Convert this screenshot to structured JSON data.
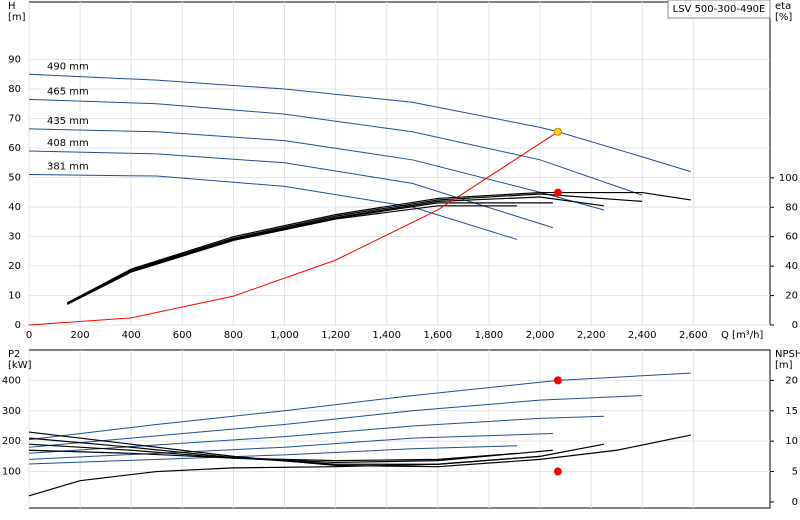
{
  "chart_data": [
    {
      "type": "line",
      "title": "LSV 500-300-490E",
      "ylabel": "H",
      "ylabel_unit": "[m]",
      "y2label": "eta",
      "y2label_unit": "[%]",
      "xlabel": "Q [m³/h]",
      "xlim": [
        0,
        2900
      ],
      "ylim": [
        0,
        109.5
      ],
      "y2lim": [
        0,
        219.5
      ],
      "grid": true,
      "xticks": [
        0,
        200,
        400,
        600,
        800,
        {
          "value": 1000,
          "label": "1,000"
        },
        {
          "value": 1200,
          "label": "1,200"
        },
        {
          "value": 1400,
          "label": "1,400"
        },
        {
          "value": 1600,
          "label": "1,600"
        },
        {
          "value": 1800,
          "label": "1,800"
        },
        {
          "value": 2000,
          "label": "2,000"
        },
        {
          "value": 2200,
          "label": "2,200"
        },
        {
          "value": 2400,
          "label": "2,400"
        },
        {
          "value": 2600,
          "label": "2,600"
        }
      ],
      "yticks": [
        0,
        10,
        20,
        30,
        40,
        50,
        60,
        70,
        80,
        90
      ],
      "y2ticks": [
        0,
        20,
        40,
        60,
        80,
        100
      ],
      "series": [
        {
          "name": "490 mm",
          "color": "#1f4e8c",
          "x": [
            0,
            500,
            1000,
            1500,
            2000,
            2070,
            2400,
            2590
          ],
          "values": [
            85,
            83,
            80,
            75.5,
            67,
            65.5,
            57,
            52
          ]
        },
        {
          "name": "465 mm",
          "color": "#1f4e8c",
          "x": [
            0,
            500,
            1000,
            1500,
            2000,
            2400
          ],
          "values": [
            76.5,
            75,
            71.5,
            65.5,
            56,
            44
          ]
        },
        {
          "name": "435 mm",
          "color": "#1f4e8c",
          "x": [
            0,
            500,
            1000,
            1500,
            2000,
            2250
          ],
          "values": [
            66.5,
            65.5,
            62.5,
            56,
            45,
            39
          ]
        },
        {
          "name": "408 mm",
          "color": "#1f4e8c",
          "x": [
            0,
            500,
            1000,
            1500,
            2050
          ],
          "values": [
            59,
            58,
            55,
            48,
            33
          ]
        },
        {
          "name": "381 mm",
          "color": "#1f4e8c",
          "x": [
            0,
            500,
            1000,
            1500,
            1910
          ],
          "values": [
            51,
            50.5,
            47,
            40,
            29
          ]
        },
        {
          "axis": "y2",
          "color": "#000000",
          "x": [
            150,
            400,
            800,
            1200,
            1600,
            2000,
            2400,
            2590
          ],
          "values": [
            15,
            38,
            60,
            75,
            86,
            90,
            90,
            85
          ]
        },
        {
          "axis": "y2",
          "color": "#000000",
          "x": [
            150,
            400,
            800,
            1200,
            1600,
            2000,
            2400
          ],
          "values": [
            15,
            37.5,
            59,
            74,
            85,
            89,
            84
          ]
        },
        {
          "axis": "y2",
          "color": "#000000",
          "x": [
            150,
            400,
            800,
            1200,
            1600,
            2000,
            2250
          ],
          "values": [
            14.5,
            37,
            58.5,
            73,
            84,
            87,
            81
          ]
        },
        {
          "axis": "y2",
          "color": "#000000",
          "x": [
            150,
            400,
            800,
            1200,
            1600,
            2050
          ],
          "values": [
            14.5,
            36.5,
            58,
            72.5,
            83,
            83
          ]
        },
        {
          "axis": "y2",
          "color": "#000000",
          "x": [
            150,
            400,
            800,
            1200,
            1600,
            1910
          ],
          "values": [
            14,
            36,
            57.5,
            72,
            81,
            81
          ]
        },
        {
          "color": "#ff0000",
          "x": [
            0,
            400,
            800,
            1200,
            1600,
            2070
          ],
          "values": [
            0,
            2.4,
            9.8,
            22,
            39,
            65.5
          ]
        }
      ],
      "points": [
        {
          "x": 2070,
          "y": 65.5,
          "color": "#ffd700"
        },
        {
          "x": 2070,
          "y": 90,
          "axis": "y2",
          "color": "#ff0000"
        }
      ]
    },
    {
      "type": "line",
      "ylabel": "P2",
      "ylabel_unit": "[kW]",
      "y2label": "NPSH",
      "y2label_unit": "[m]",
      "xlim": [
        0,
        2900
      ],
      "ylim": [
        -20,
        500
      ],
      "y2lim": [
        -1,
        25
      ],
      "grid": true,
      "yticks": [
        100,
        200,
        300,
        400
      ],
      "y2ticks": [
        0,
        5,
        10,
        15,
        20
      ],
      "series": [
        {
          "color": "#1f4e8c",
          "x": [
            0,
            500,
            1000,
            1500,
            2070,
            2590
          ],
          "values": [
            205,
            255,
            300,
            350,
            400,
            424
          ]
        },
        {
          "color": "#1f4e8c",
          "x": [
            0,
            1000,
            1500,
            2000,
            2400
          ],
          "values": [
            180,
            255,
            300,
            335,
            350
          ]
        },
        {
          "color": "#1f4e8c",
          "x": [
            0,
            1000,
            1500,
            2000,
            2250
          ],
          "values": [
            160,
            215,
            250,
            275,
            282
          ]
        },
        {
          "color": "#1f4e8c",
          "x": [
            0,
            1000,
            1500,
            2050
          ],
          "values": [
            140,
            180,
            210,
            225
          ]
        },
        {
          "color": "#1f4e8c",
          "x": [
            0,
            1000,
            1500,
            1910
          ],
          "values": [
            125,
            155,
            175,
            185
          ]
        },
        {
          "axis": "y2",
          "color": "#000000",
          "x": [
            0,
            400,
            800,
            1200,
            1600,
            2000,
            2300,
            2590
          ],
          "values": [
            11.5,
            9.5,
            7.5,
            6,
            5.8,
            7,
            8.5,
            11
          ]
        },
        {
          "axis": "y2",
          "color": "#000000",
          "x": [
            0,
            400,
            800,
            1200,
            1600,
            2000,
            2250
          ],
          "values": [
            10.5,
            9,
            7.3,
            6.2,
            6.2,
            7.5,
            9.5
          ]
        },
        {
          "axis": "y2",
          "color": "#000000",
          "x": [
            0,
            400,
            800,
            1200,
            1600,
            2050
          ],
          "values": [
            9.5,
            8.5,
            7.2,
            6.5,
            6.8,
            8.5
          ]
        },
        {
          "axis": "y2",
          "color": "#000000",
          "x": [
            0,
            400,
            800,
            1200,
            1600,
            1910
          ],
          "values": [
            8.5,
            8,
            7.2,
            6.8,
            7,
            8
          ]
        },
        {
          "axis": "y2",
          "color": "#000000",
          "x": [
            0,
            200,
            500,
            800,
            1200,
            1600,
            2000
          ],
          "values": [
            1,
            3.5,
            5,
            5.6,
            5.8,
            6.2,
            7.5
          ]
        }
      ],
      "points": [
        {
          "x": 2070,
          "y": 400,
          "color": "#ff0000"
        },
        {
          "x": 2070,
          "y": 5,
          "axis": "y2",
          "color": "#ff0000"
        }
      ]
    }
  ]
}
